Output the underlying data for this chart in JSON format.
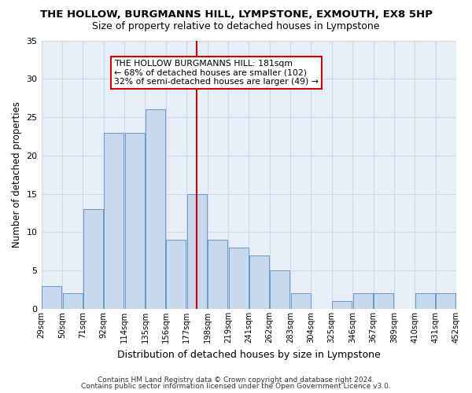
{
  "title": "THE HOLLOW, BURGMANNS HILL, LYMPSTONE, EXMOUTH, EX8 5HP",
  "subtitle": "Size of property relative to detached houses in Lympstone",
  "xlabel": "Distribution of detached houses by size in Lympstone",
  "ylabel": "Number of detached properties",
  "bar_color": "#c8d8ee",
  "bar_edge_color": "#6699cc",
  "grid_color": "#d0d8e8",
  "bg_color": "#e8eef8",
  "vline_x": 7,
  "vline_color": "#cc0000",
  "annotation_text": "THE HOLLOW BURGMANNS HILL: 181sqm\n← 68% of detached houses are smaller (102)\n32% of semi-detached houses are larger (49) →",
  "annotation_box_color": "#ffffff",
  "annotation_box_edge": "#cc0000",
  "counts": [
    3,
    2,
    13,
    23,
    23,
    26,
    9,
    15,
    9,
    8,
    7,
    5,
    2,
    0,
    1,
    2,
    2,
    0,
    2,
    2
  ],
  "tick_labels": [
    "29sqm",
    "50sqm",
    "71sqm",
    "92sqm",
    "114sqm",
    "135sqm",
    "156sqm",
    "177sqm",
    "198sqm",
    "219sqm",
    "241sqm",
    "262sqm",
    "283sqm",
    "304sqm",
    "325sqm",
    "346sqm",
    "367sqm",
    "389sqm",
    "410sqm",
    "431sqm",
    "452sqm"
  ],
  "ylim": [
    0,
    35
  ],
  "yticks": [
    0,
    5,
    10,
    15,
    20,
    25,
    30,
    35
  ],
  "footer1": "Contains HM Land Registry data © Crown copyright and database right 2024.",
  "footer2": "Contains public sector information licensed under the Open Government Licence v3.0."
}
